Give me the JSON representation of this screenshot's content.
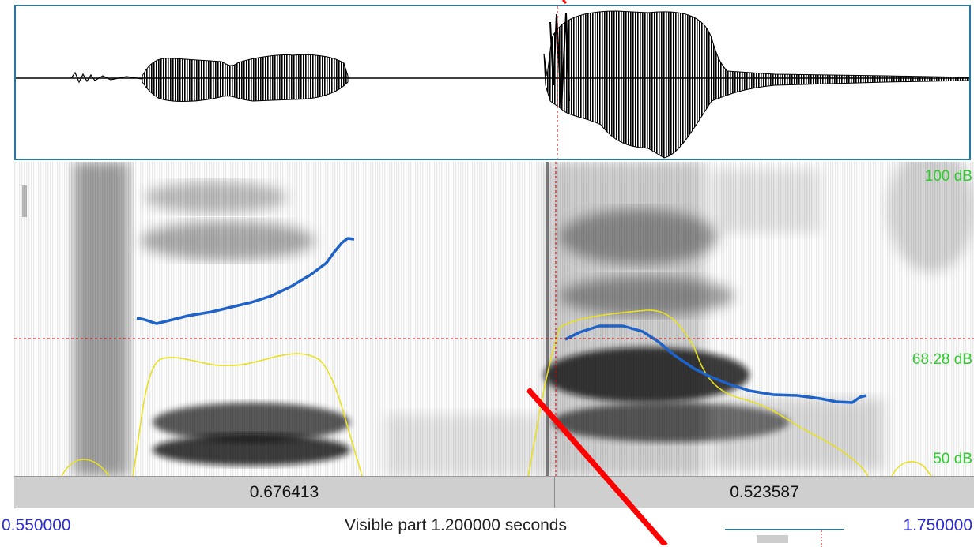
{
  "spectrogram": {
    "db_top": "100 dB",
    "db_cursor": "68.28 dB",
    "db_bottom": "50 dB"
  },
  "duration_bar": {
    "left_segment": "0.676413",
    "right_segment": "0.523587"
  },
  "time_row": {
    "start": "0.550000",
    "visible_part": "Visible part 1.200000 seconds",
    "end": "1.750000"
  },
  "colors": {
    "waveform": "#000000",
    "pitch_line": "#1f62c8",
    "intensity_line": "#e8e020",
    "cursor": "#cc0000",
    "db_labels": "#2ecc2e",
    "time_labels": "#2b2bd6",
    "annotation_stroke": "#ff0000"
  }
}
